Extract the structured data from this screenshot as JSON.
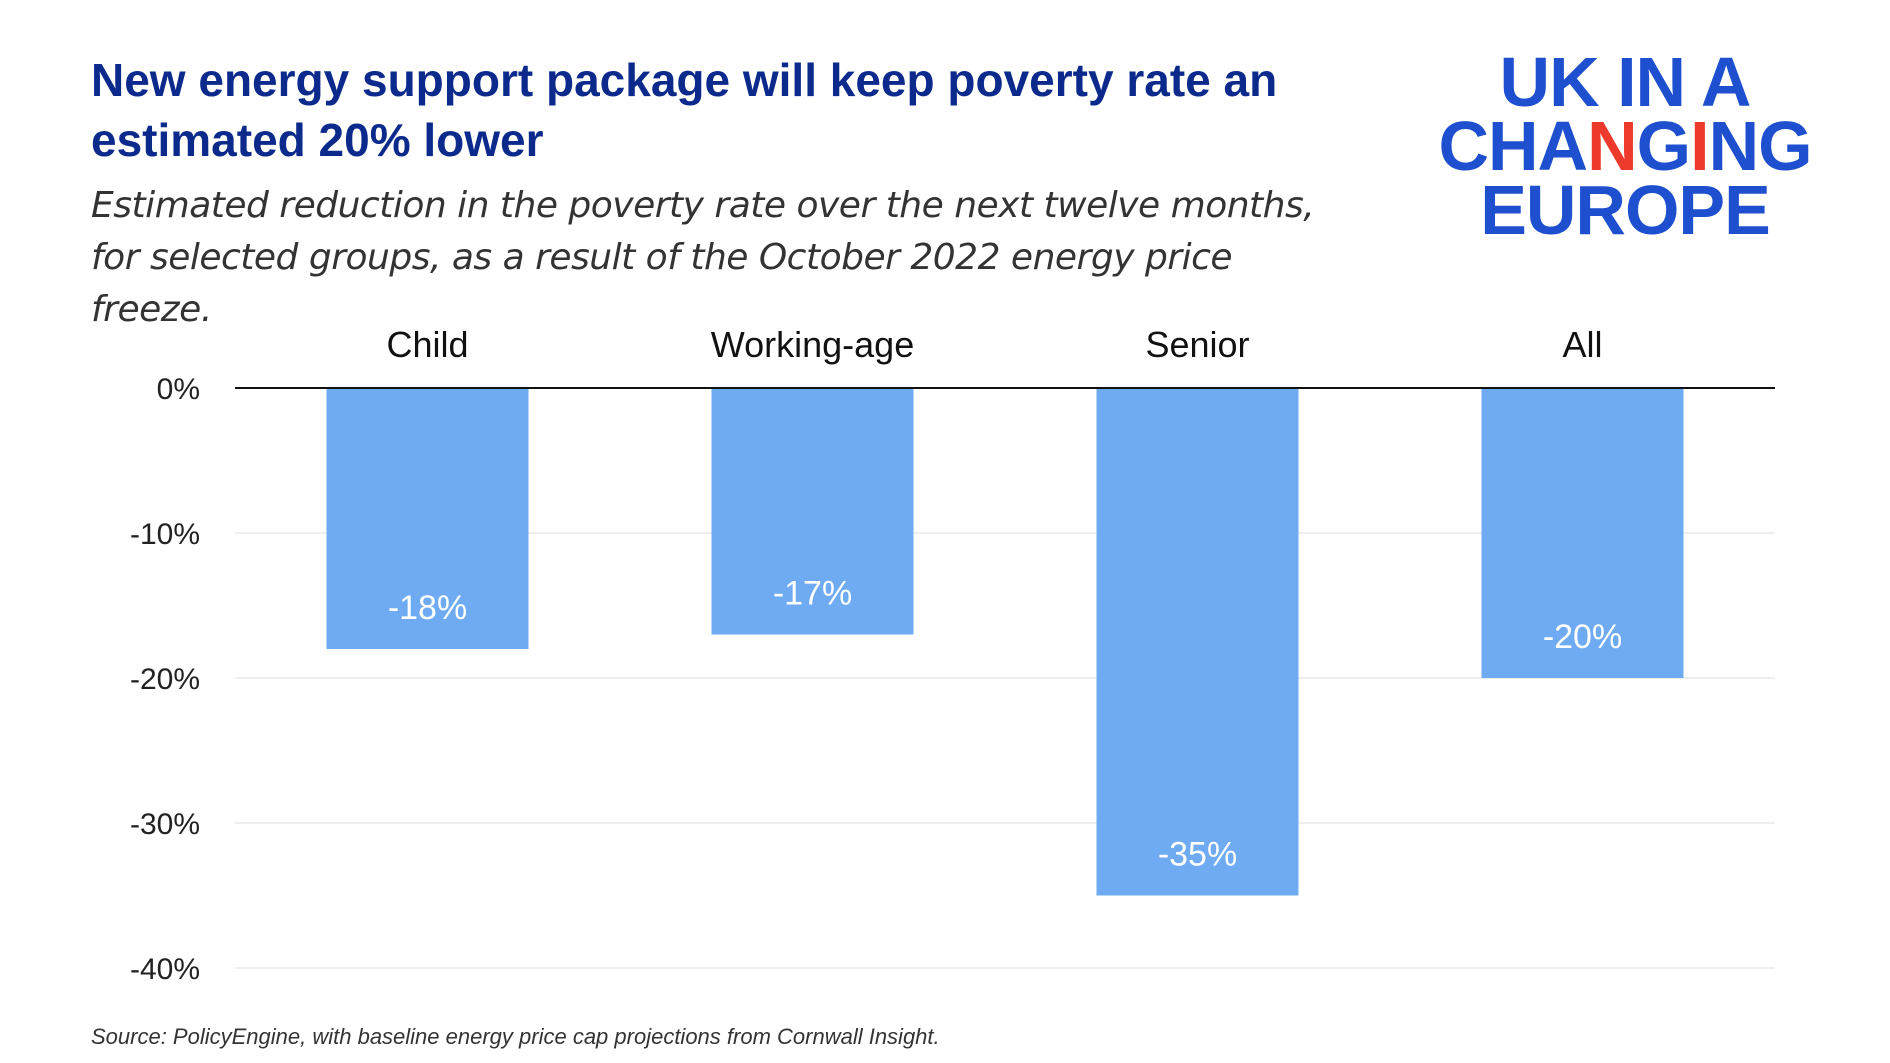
{
  "header": {
    "title": "New energy support package will keep poverty rate an estimated 20% lower",
    "subtitle": "Estimated reduction in the poverty rate over the next twelve months, for selected groups, as a result of the October 2022 energy price freeze."
  },
  "logo": {
    "line1": "UK IN A",
    "line2_a": "CHA",
    "line2_accent1": "N",
    "line2_b": "G",
    "line2_accent2": "I",
    "line2_c": "NG",
    "line3": "EUROPE",
    "accent_color": "#ee3a2c",
    "brand_color": "#1d4fcf"
  },
  "chart_data": {
    "type": "bar",
    "title": "New energy support package will keep poverty rate an estimated 20% lower",
    "categories": [
      "Child",
      "Working-age",
      "Senior",
      "All"
    ],
    "values": [
      -18,
      -17,
      -35,
      -20
    ],
    "data_labels": [
      "-18%",
      "-17%",
      "-35%",
      "-20%"
    ],
    "yticks": [
      0,
      -10,
      -20,
      -30,
      -40
    ],
    "ytick_labels": [
      "0%",
      "-10%",
      "-20%",
      "-30%",
      "-40%"
    ],
    "ylim": [
      -40,
      0
    ],
    "xlabel": "",
    "ylabel": "",
    "category_labels_position": "top",
    "grid": true,
    "bar_color": "#6eabf2",
    "label_color": "#ffffff"
  },
  "footer": {
    "source": "Source: PolicyEngine, with baseline energy price cap projections from Cornwall Insight."
  }
}
